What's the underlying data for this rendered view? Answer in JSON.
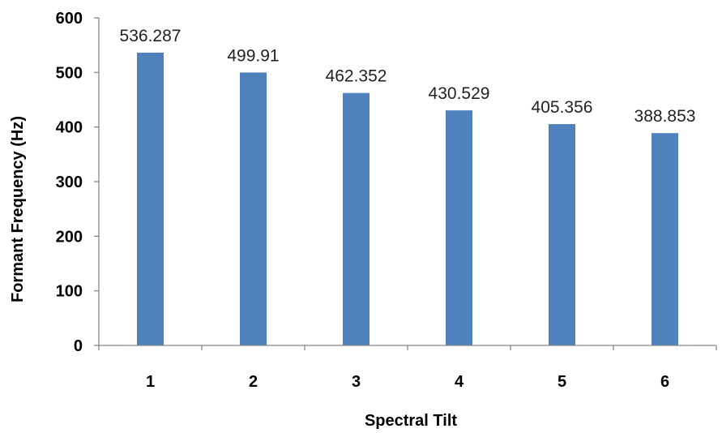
{
  "chart_data": {
    "type": "bar",
    "title": "",
    "xlabel": "Spectral Tilt",
    "ylabel": "Formant Frequency (Hz)",
    "categories": [
      "1",
      "2",
      "3",
      "4",
      "5",
      "6"
    ],
    "values": [
      536.287,
      499.91,
      462.352,
      430.529,
      405.356,
      388.853
    ],
    "data_labels": [
      "536.287",
      "499.91",
      "462.352",
      "430.529",
      "405.356",
      "388.853"
    ],
    "ylim": [
      0,
      600
    ],
    "yticks": [
      0,
      100,
      200,
      300,
      400,
      500,
      600
    ],
    "grid": false,
    "legend": "none",
    "bar_color": "#4F81BD"
  }
}
